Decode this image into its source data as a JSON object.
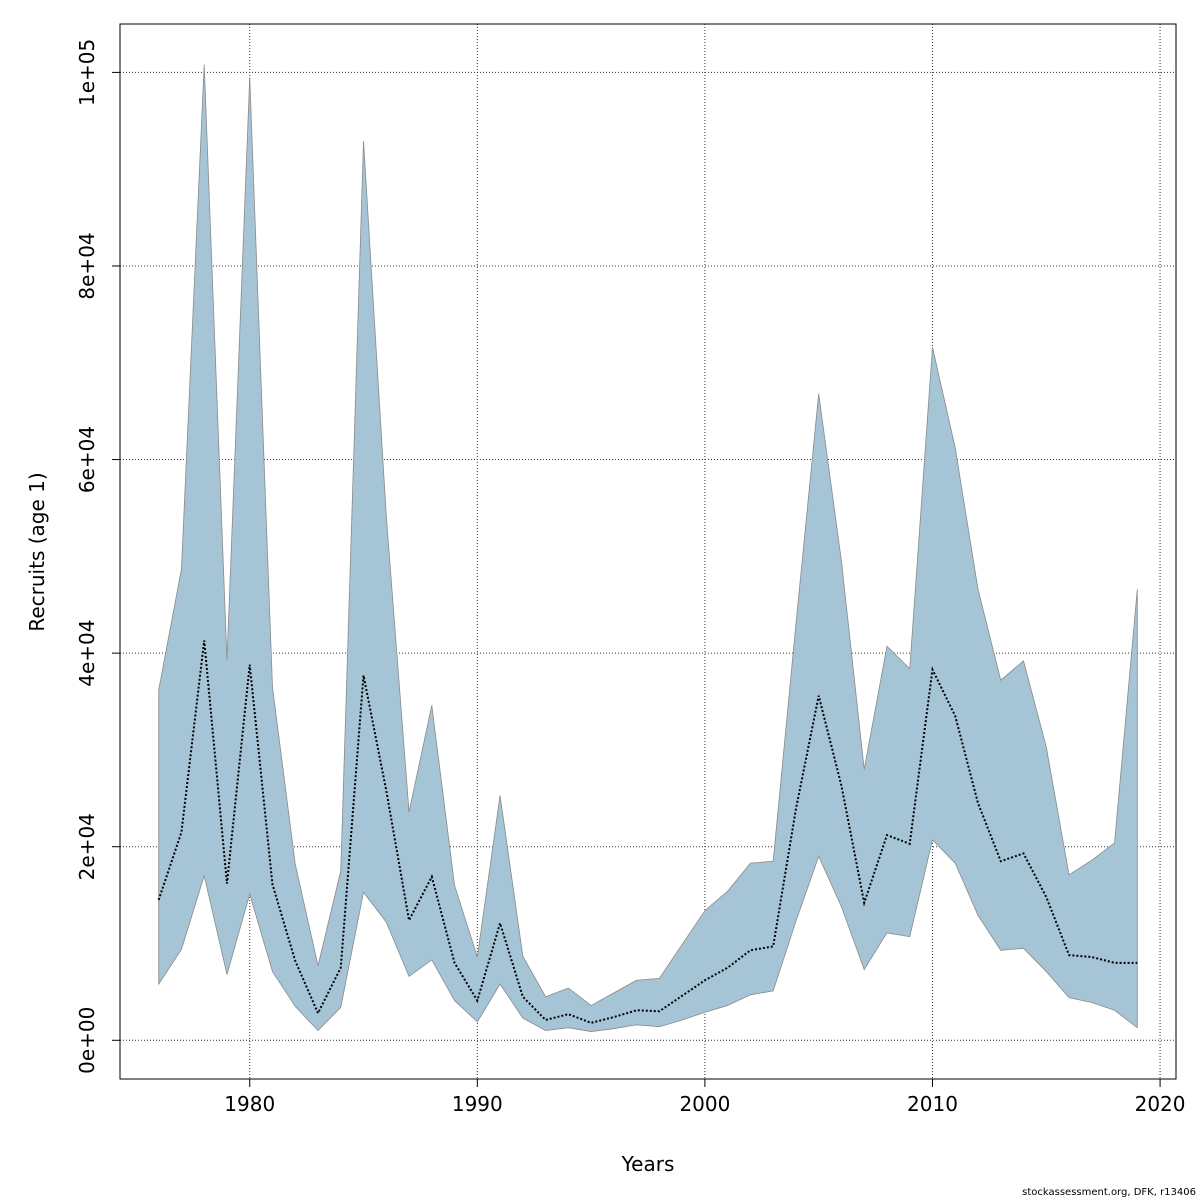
{
  "chart_data": {
    "type": "area",
    "xlabel": "Years",
    "ylabel": "Recruits (age 1)",
    "xlim": [
      1974.3,
      2020.7
    ],
    "ylim": [
      -4000,
      105000
    ],
    "xticks": [
      1980,
      1990,
      2000,
      2010,
      2020
    ],
    "xtick_labels": [
      "1980",
      "1990",
      "2000",
      "2010",
      "2020"
    ],
    "yticks": [
      0,
      20000,
      40000,
      60000,
      80000,
      100000
    ],
    "ytick_labels": [
      "0e+00",
      "2e+04",
      "4e+04",
      "6e+04",
      "8e+04",
      "1e+05"
    ],
    "grid": true,
    "colors": {
      "band_fill": "#a5c4d5",
      "band_edge": "#8a8a8a",
      "estimate_line": "#000000",
      "grid": "#333333"
    },
    "x": [
      1976,
      1977,
      1978,
      1979,
      1980,
      1981,
      1982,
      1983,
      1984,
      1985,
      1986,
      1987,
      1988,
      1989,
      1990,
      1991,
      1992,
      1993,
      1994,
      1995,
      1996,
      1997,
      1998,
      1999,
      2000,
      2001,
      2002,
      2003,
      2004,
      2005,
      2006,
      2007,
      2008,
      2009,
      2010,
      2011,
      2012,
      2013,
      2014,
      2015,
      2016,
      2017,
      2018,
      2019
    ],
    "series": [
      {
        "role": "upper",
        "values": [
          36200,
          48700,
          100800,
          39300,
          99500,
          36500,
          18200,
          7700,
          17500,
          92900,
          54200,
          23600,
          34600,
          16000,
          8600,
          25300,
          8700,
          4500,
          5400,
          3600,
          4900,
          6200,
          6400,
          9900,
          13400,
          15400,
          18300,
          18500,
          43000,
          66800,
          49500,
          28000,
          40700,
          38400,
          71600,
          61200,
          46600,
          37200,
          39200,
          30300,
          17100,
          18600,
          20400,
          46600
        ]
      },
      {
        "role": "estimate",
        "values": [
          14500,
          21500,
          41300,
          16200,
          38800,
          16100,
          8200,
          2800,
          7500,
          37700,
          25800,
          12400,
          16900,
          8000,
          4100,
          12100,
          4500,
          2100,
          2700,
          1800,
          2400,
          3100,
          3000,
          4600,
          6200,
          7500,
          9300,
          9700,
          23900,
          35600,
          26300,
          14200,
          21200,
          20300,
          38300,
          33500,
          24500,
          18500,
          19300,
          14800,
          8800,
          8600,
          8000,
          8000
        ]
      },
      {
        "role": "lower",
        "values": [
          5800,
          9400,
          17000,
          6800,
          15100,
          7100,
          3500,
          1000,
          3400,
          15300,
          12200,
          6600,
          8300,
          4100,
          1900,
          5800,
          2300,
          1000,
          1300,
          900,
          1200,
          1600,
          1400,
          2100,
          2900,
          3600,
          4700,
          5100,
          12300,
          19000,
          13800,
          7300,
          11100,
          10700,
          20700,
          18300,
          12900,
          9300,
          9500,
          7100,
          4400,
          3900,
          3100,
          1300
        ]
      }
    ]
  },
  "credit": "stockassessment.org, DFK, r13406"
}
